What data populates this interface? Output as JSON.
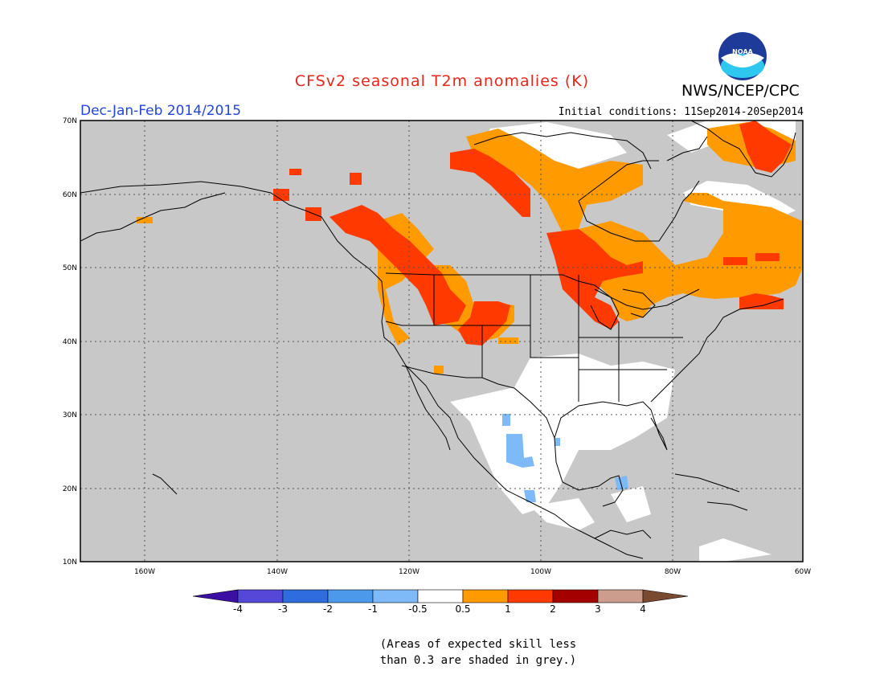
{
  "title": "CFSv2 seasonal T2m anomalies (K)",
  "agency": "NWS/NCEP/CPC",
  "logo_text": "NOAA",
  "season": "Dec-Jan-Feb 2014/2015",
  "initial_conditions": "Initial conditions: 11Sep2014-20Sep2014",
  "map": {
    "extent": {
      "lon": [
        -172,
        -60
      ],
      "lat": [
        10,
        70
      ]
    },
    "lat_ticks": [
      "10N",
      "20N",
      "30N",
      "40N",
      "50N",
      "60N",
      "70N"
    ],
    "lon_ticks": [
      "160W",
      "140W",
      "120W",
      "100W",
      "80W",
      "60W"
    ],
    "gridlines": "dotted"
  },
  "colorbar": {
    "labels": [
      "-4",
      "-3",
      "-2",
      "-1",
      "-0.5",
      "0.5",
      "1",
      "2",
      "3",
      "4"
    ],
    "colors": [
      "#3b0fa4",
      "#5548d8",
      "#2f6dde",
      "#4c99ec",
      "#7fbaf8",
      "#ffffff",
      "#ff9a00",
      "#ff3a00",
      "#a50000",
      "#cc9d8c",
      "#7a4a30"
    ]
  },
  "note": {
    "line1": "(Areas of expected skill less",
    "line2": "than 0.3 are shaded in grey.)"
  },
  "colors": {
    "skill_grey": "#c8c8c8",
    "near_normal": "#ffffff",
    "warm_0_5_1": "#ff9a00",
    "warm_1_2": "#ff3a00",
    "cool_neg1_neg0_5": "#7fbaf8"
  }
}
